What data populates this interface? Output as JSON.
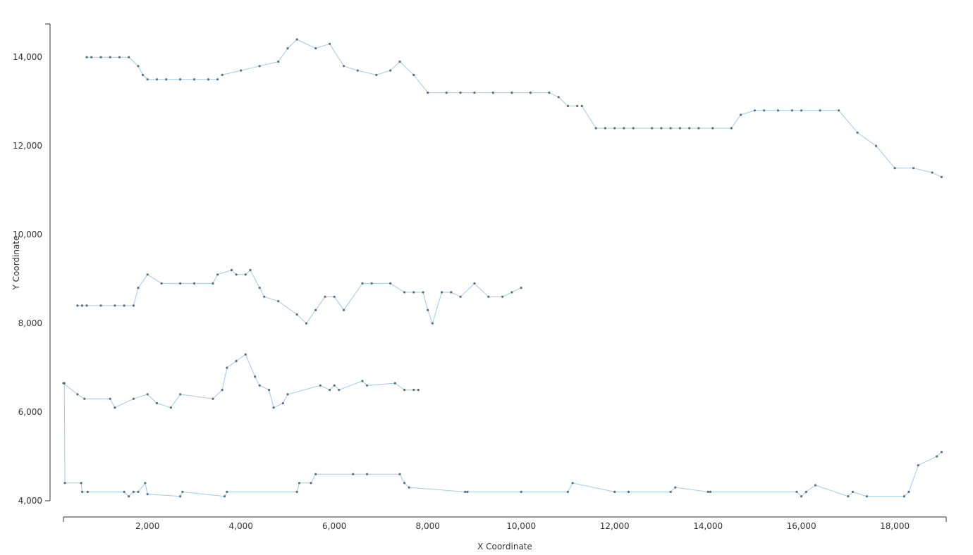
{
  "chart_data": {
    "type": "line",
    "title": "",
    "xlabel": "X Coordinate",
    "ylabel": "Y Coordinate",
    "xlim": [
      200,
      19100
    ],
    "ylim": [
      4000,
      14750
    ],
    "x_ticks": [
      2000,
      4000,
      6000,
      8000,
      10000,
      12000,
      14000,
      16000,
      18000
    ],
    "x_tick_labels": [
      "2,000",
      "4,000",
      "6,000",
      "8,000",
      "10,000",
      "12,000",
      "14,000",
      "16,000",
      "18,000"
    ],
    "y_ticks": [
      4000,
      6000,
      8000,
      10000,
      12000,
      14000
    ],
    "y_tick_labels": [
      "4,000",
      "6,000",
      "8,000",
      "10,000",
      "12,000",
      "14,000"
    ],
    "grid": false,
    "colors": {
      "route_line": "#9ecbe6",
      "point": "#5a6f7c",
      "axis": "#333333"
    },
    "series": [
      {
        "x": [
          220,
          230,
          580,
          600,
          720,
          1500,
          1600,
          1700,
          1800,
          1950,
          2000,
          2700,
          2750,
          3650,
          3700,
          5200,
          5250,
          5500,
          5600,
          6400,
          6700,
          7400,
          7500,
          7600,
          8800,
          8850,
          10000,
          11000,
          11100,
          12000,
          12300,
          13200,
          13300,
          14000,
          14050,
          15900,
          16000,
          16100,
          16300,
          17000,
          17100,
          17400,
          18200,
          18300,
          18500,
          18900,
          19000
        ],
        "y": [
          6650,
          4400,
          4400,
          4200,
          4200,
          4200,
          4100,
          4200,
          4200,
          4400,
          4150,
          4100,
          4200,
          4100,
          4200,
          4200,
          4400,
          4400,
          4600,
          4600,
          4600,
          4600,
          4400,
          4300,
          4200,
          4200,
          4200,
          4200,
          4400,
          4200,
          4200,
          4200,
          4300,
          4200,
          4200,
          4200,
          4100,
          4200,
          4350,
          4100,
          4200,
          4100,
          4100,
          4200,
          4800,
          5000,
          5100
        ]
      },
      {
        "x": [
          200,
          500,
          650,
          1200,
          1300,
          1700,
          2000,
          2200,
          2500,
          2700,
          3400,
          3600,
          3700,
          3900,
          4100,
          4300,
          4400,
          4600,
          4700,
          4900,
          5000,
          5700,
          5900,
          6000,
          6100,
          6600,
          6700,
          7300,
          7500,
          7700,
          7800
        ],
        "y": [
          6650,
          6400,
          6300,
          6300,
          6100,
          6300,
          6400,
          6200,
          6100,
          6400,
          6300,
          6500,
          7000,
          7150,
          7300,
          6800,
          6600,
          6500,
          6100,
          6200,
          6400,
          6600,
          6500,
          6600,
          6500,
          6700,
          6600,
          6650,
          6500,
          6500,
          6500
        ]
      },
      {
        "x": [
          500,
          600,
          700,
          1000,
          1300,
          1500,
          1700,
          1800,
          2000,
          2300,
          2700,
          3000,
          3400,
          3500,
          3800,
          3900,
          4100,
          4200,
          4400,
          4500,
          4800,
          5200,
          5400,
          5600,
          5800,
          6000,
          6200,
          6600,
          6800,
          7200,
          7500,
          7700,
          7900,
          8000,
          8100,
          8300,
          8500,
          8700,
          9000,
          9300,
          9600,
          9800,
          10000
        ],
        "y": [
          8400,
          8400,
          8400,
          8400,
          8400,
          8400,
          8400,
          8800,
          9100,
          8900,
          8900,
          8900,
          8900,
          9100,
          9200,
          9100,
          9100,
          9200,
          8800,
          8600,
          8500,
          8200,
          8000,
          8300,
          8600,
          8600,
          8300,
          8900,
          8900,
          8900,
          8700,
          8700,
          8700,
          8300,
          8000,
          8700,
          8700,
          8600,
          8900,
          8600,
          8600,
          8700,
          8800
        ]
      },
      {
        "x": [
          700,
          800,
          1000,
          1200,
          1400,
          1600,
          1800,
          1900,
          2000,
          2200,
          2400,
          2700,
          3000,
          3300,
          3500
        ],
        "y": [
          14000,
          14000,
          14000,
          14000,
          14000,
          14000,
          13800,
          13600,
          13500,
          13500,
          13500,
          13500,
          13500,
          13500,
          13500
        ]
      },
      {
        "x": [
          3600,
          4000,
          4400,
          4800,
          5000,
          5200,
          5600,
          5900,
          6200,
          6500,
          6900,
          7200,
          7400,
          7700,
          8000,
          8400,
          8700,
          9000,
          9400,
          9800,
          10200,
          10600,
          10800,
          11000,
          11200
        ],
        "y": [
          13600,
          13700,
          13800,
          13900,
          14200,
          14400,
          14200,
          14300,
          13800,
          13700,
          13600,
          13700,
          13900,
          13600,
          13200,
          13200,
          13200,
          13200,
          13200,
          13200,
          13200,
          13200,
          13100,
          12900,
          12900
        ]
      },
      {
        "x": [
          11300,
          11600,
          11800,
          12000,
          12200,
          12400,
          12800,
          13000,
          13200,
          13400,
          13600,
          13800,
          14100,
          14500,
          14700,
          15000,
          15200,
          15500,
          15800,
          16000,
          16400,
          16800,
          17200,
          17600,
          18000,
          18400,
          18800,
          19000
        ],
        "y": [
          12900,
          12400,
          12400,
          12400,
          12400,
          12400,
          12400,
          12400,
          12400,
          12400,
          12400,
          12400,
          12400,
          12400,
          12700,
          12800,
          12800,
          12800,
          12800,
          12800,
          12800,
          12800,
          12300,
          12000,
          11500,
          11500,
          11400,
          11300
        ]
      }
    ]
  }
}
